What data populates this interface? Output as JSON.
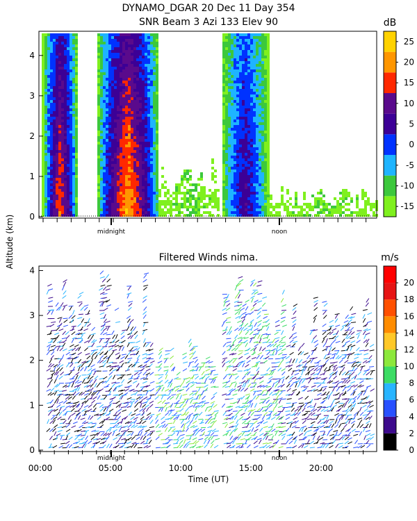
{
  "figure": {
    "title_line1": "DYNAMO_DGAR  20 Dec 11 Day 354",
    "y_axis_label": "Altitude (km)",
    "x_axis_label": "Time (UT)"
  },
  "colors": {
    "snr_scale": [
      "#7ff01e",
      "#3cc83c",
      "#1eb4ff",
      "#0032ff",
      "#3c0096",
      "#5a0a8c",
      "#ff2800",
      "#ff9600",
      "#ffd200"
    ],
    "wind_scale": [
      "#000000",
      "#3c0a8c",
      "#2850ff",
      "#28b4ff",
      "#3cdc64",
      "#8ce83c",
      "#ffc828",
      "#ff8c00",
      "#ff5000",
      "#e61414",
      "#ff0000"
    ]
  },
  "chart_data": [
    {
      "type": "heatmap",
      "title": "SNR Beam 3 Azi 133 Elev 90",
      "x_range_hours": [
        -0.5,
        23.9
      ],
      "ylim": [
        0,
        4.6
      ],
      "yticks": [
        "0",
        "1",
        "2",
        "3",
        "4"
      ],
      "x_markers": [
        "midnight",
        "noon"
      ],
      "colorbar": {
        "unit": "dB",
        "ticks": [
          "-15",
          "-10",
          "-5",
          "0",
          "5",
          "10",
          "15",
          "20",
          "25"
        ]
      },
      "regions_time_hours": [
        {
          "start": -0.3,
          "end": 2.2,
          "max_altitude_km": 4.6,
          "peak_snr_db": 20
        },
        {
          "start": 3.6,
          "end": 8.1,
          "max_altitude_km": 4.6,
          "peak_snr_db": 25
        },
        {
          "start": 8.1,
          "end": 12.5,
          "max_altitude_km": 1.5,
          "peak_snr_db": -10
        },
        {
          "start": 12.6,
          "end": 16.0,
          "max_altitude_km": 4.6,
          "peak_snr_db": 10
        },
        {
          "start": 16.0,
          "end": 23.9,
          "max_altitude_km": 0.8,
          "peak_snr_db": -10
        }
      ]
    },
    {
      "type": "scatter",
      "title": "Filtered Winds nima.",
      "xlabel": "Time (UT)",
      "ylim": [
        0,
        4.1
      ],
      "yticks": [
        "0",
        "1",
        "2",
        "3",
        "4"
      ],
      "xticks": [
        "00:00",
        "05:00",
        "10:00",
        "15:00",
        "20:00"
      ],
      "x_markers": [
        "midnight",
        "noon"
      ],
      "colorbar": {
        "unit": "m/s",
        "ticks": [
          "0",
          "2",
          "4",
          "6",
          "8",
          "10",
          "12",
          "14",
          "16",
          "18",
          "20"
        ]
      },
      "wind_regions_time_hours": [
        {
          "start": 0.5,
          "end": 7.8,
          "max_altitude_km": 4.0,
          "typical_speed_ms": 4
        },
        {
          "start": 8.2,
          "end": 12.5,
          "max_altitude_km": 2.5,
          "typical_speed_ms": 8
        },
        {
          "start": 13.0,
          "end": 17.2,
          "max_altitude_km": 3.9,
          "typical_speed_ms": 7
        },
        {
          "start": 17.5,
          "end": 23.5,
          "max_altitude_km": 3.4,
          "typical_speed_ms": 4
        }
      ]
    }
  ]
}
